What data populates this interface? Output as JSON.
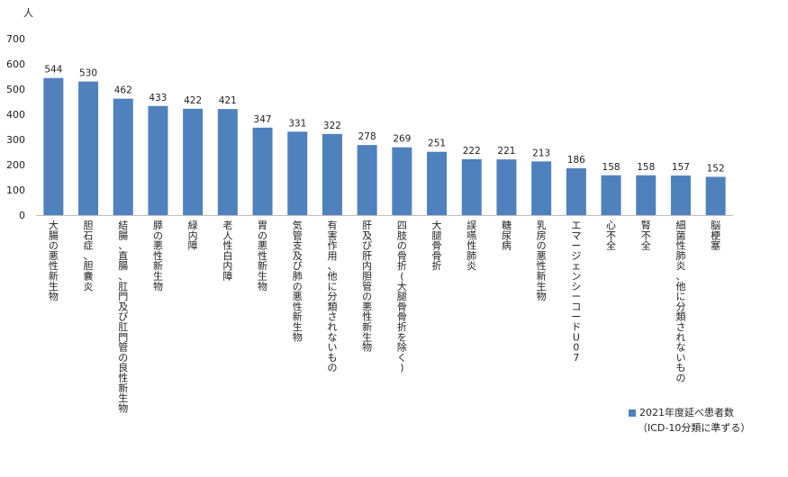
{
  "chart_data": {
    "type": "bar",
    "unit_label": "人",
    "categories": [
      "大腸の悪性新生物",
      "胆石症、胆嚢炎",
      "結腸、直腸、肛門及び肛門管の良性新生物",
      "膵の悪性新生物",
      "緑内障",
      "老人性白内障",
      "胃の悪性新生物",
      "気管支及び肺の悪性新生物",
      "有害作用、他に分類されないもの",
      "肝及び肝内胆管の悪性新生物",
      "四肢の骨折(大腿骨骨折を除く)",
      "大腿骨骨折",
      "誤嚥性肺炎",
      "糖尿病",
      "乳房の悪性新生物",
      "エマージェンシーコードU07",
      "心不全",
      "腎不全",
      "細菌性肺炎、他に分類されないもの",
      "脳梗塞"
    ],
    "series": [
      {
        "name": "2021年度延べ患者数",
        "values": [
          544,
          530,
          462,
          433,
          422,
          421,
          347,
          331,
          322,
          278,
          269,
          251,
          222,
          221,
          213,
          186,
          158,
          158,
          157,
          152
        ]
      }
    ],
    "yticks": [
      "0",
      "100",
      "200",
      "300",
      "400",
      "500",
      "600",
      "700"
    ],
    "ylim": [
      0,
      700
    ],
    "grid": false,
    "legend_position": "bottom-right",
    "bar_color": "#4f81bd"
  },
  "legend": {
    "series_label": "2021年度延べ患者数",
    "note": "（ICD-10分類に準ずる）"
  }
}
